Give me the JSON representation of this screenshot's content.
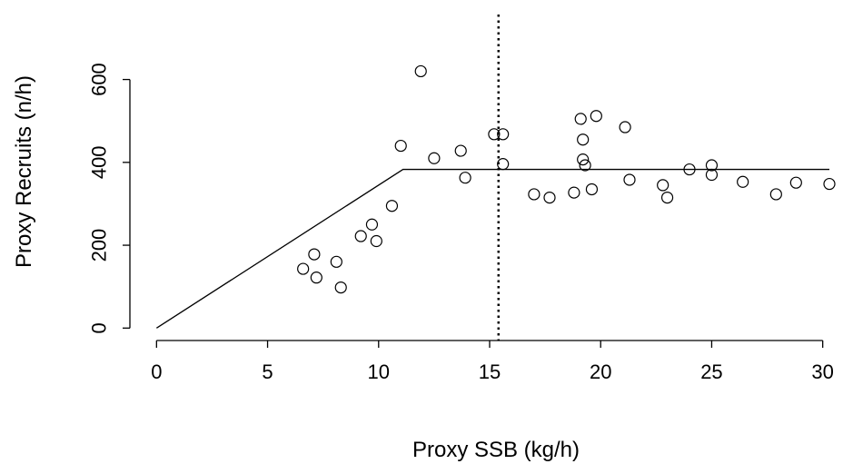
{
  "chart_data": {
    "type": "scatter",
    "title": "",
    "xlabel": "Proxy SSB (kg/h)",
    "ylabel": "Proxy Recruits (n/h)",
    "xlim": [
      -1.2,
      31.2
    ],
    "ylim": [
      -30,
      770
    ],
    "x_ticks": [
      0,
      5,
      10,
      15,
      20,
      25,
      30
    ],
    "y_ticks": [
      0,
      200,
      400,
      600
    ],
    "x_tick_labels": [
      "0",
      "5",
      "10",
      "15",
      "20",
      "25",
      "30"
    ],
    "y_tick_labels": [
      "0",
      "200",
      "400",
      "600"
    ],
    "grid": false,
    "legend": "none",
    "points": [
      {
        "x": 6.6,
        "y": 143
      },
      {
        "x": 7.1,
        "y": 178
      },
      {
        "x": 7.2,
        "y": 122
      },
      {
        "x": 8.1,
        "y": 160
      },
      {
        "x": 8.3,
        "y": 98
      },
      {
        "x": 9.2,
        "y": 222
      },
      {
        "x": 9.7,
        "y": 250
      },
      {
        "x": 9.9,
        "y": 210
      },
      {
        "x": 10.6,
        "y": 295
      },
      {
        "x": 11.0,
        "y": 440
      },
      {
        "x": 11.9,
        "y": 620
      },
      {
        "x": 12.5,
        "y": 410
      },
      {
        "x": 13.7,
        "y": 428
      },
      {
        "x": 13.9,
        "y": 363
      },
      {
        "x": 15.2,
        "y": 468
      },
      {
        "x": 15.6,
        "y": 468
      },
      {
        "x": 15.6,
        "y": 396
      },
      {
        "x": 17.0,
        "y": 323
      },
      {
        "x": 17.7,
        "y": 315
      },
      {
        "x": 18.8,
        "y": 327
      },
      {
        "x": 19.1,
        "y": 505
      },
      {
        "x": 19.2,
        "y": 455
      },
      {
        "x": 19.2,
        "y": 407
      },
      {
        "x": 19.3,
        "y": 393
      },
      {
        "x": 19.6,
        "y": 335
      },
      {
        "x": 19.8,
        "y": 512
      },
      {
        "x": 21.1,
        "y": 485
      },
      {
        "x": 21.3,
        "y": 358
      },
      {
        "x": 22.8,
        "y": 345
      },
      {
        "x": 23.0,
        "y": 315
      },
      {
        "x": 24.0,
        "y": 383
      },
      {
        "x": 25.0,
        "y": 370
      },
      {
        "x": 25.0,
        "y": 393
      },
      {
        "x": 26.4,
        "y": 353
      },
      {
        "x": 27.9,
        "y": 323
      },
      {
        "x": 28.8,
        "y": 351
      },
      {
        "x": 30.3,
        "y": 348
      }
    ],
    "fit_line": {
      "x": [
        0,
        11.1,
        30.3
      ],
      "y": [
        0,
        383,
        383
      ]
    },
    "reference_line": {
      "orientation": "vertical",
      "x": 15.4,
      "style": "dotted"
    },
    "colors": {
      "points": "#000000",
      "lines": "#000000",
      "background": "#ffffff"
    }
  }
}
